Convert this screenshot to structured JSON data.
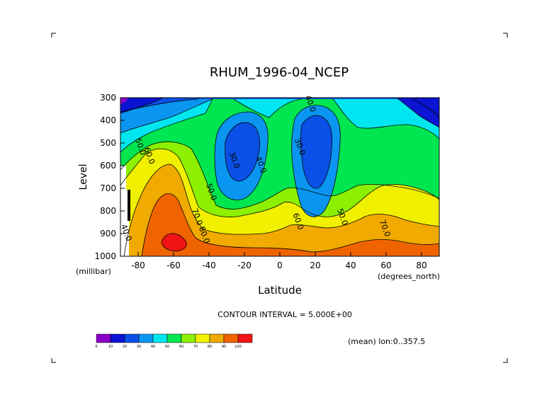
{
  "chart_data": {
    "type": "heatmap",
    "title": "RHUM_1996-04_NCEP",
    "xlabel": "Latitude",
    "ylabel": "Level",
    "x_unit": "(degrees_north)",
    "y_unit": "(millibar)",
    "xlim": [
      -90,
      90
    ],
    "ylim": [
      1000,
      300
    ],
    "x_ticks": [
      -80,
      -60,
      -40,
      -20,
      0,
      20,
      40,
      60,
      80
    ],
    "y_ticks": [
      300,
      400,
      500,
      600,
      700,
      800,
      900,
      1000
    ],
    "contour_interval_text": "CONTOUR INTERVAL = 5.000E+00",
    "mean_text": "(mean) lon:0..357.5",
    "contour_labels": [
      {
        "text": "40.0",
        "lat": 16,
        "level": 330
      },
      {
        "text": "30.0",
        "lat": 10,
        "level": 520
      },
      {
        "text": "30.0",
        "lat": -27,
        "level": 580
      },
      {
        "text": "40.0",
        "lat": -12,
        "level": 600
      },
      {
        "text": "50.0",
        "lat": -80,
        "level": 520
      },
      {
        "text": "60.0",
        "lat": -75,
        "level": 560
      },
      {
        "text": "50.0",
        "lat": -40,
        "level": 720
      },
      {
        "text": "70.0",
        "lat": -48,
        "level": 830
      },
      {
        "text": "80.0",
        "lat": -44,
        "level": 910
      },
      {
        "text": "60.0",
        "lat": 9,
        "level": 850
      },
      {
        "text": "50.0",
        "lat": 34,
        "level": 830
      },
      {
        "text": "70.0",
        "lat": 58,
        "level": 880
      },
      {
        "text": "40.0",
        "lat": -88,
        "level": 900
      }
    ],
    "colorbar": {
      "ticks": [
        "0",
        "10",
        "20",
        "30",
        "40",
        "50",
        "60",
        "70",
        "80",
        "90",
        "100"
      ],
      "colors": [
        "#8b00c8",
        "#0a14d2",
        "#0a50e6",
        "#0a96f0",
        "#00e6f0",
        "#00e650",
        "#8cf000",
        "#f0f000",
        "#f0aa00",
        "#f06400",
        "#f01414"
      ]
    }
  }
}
